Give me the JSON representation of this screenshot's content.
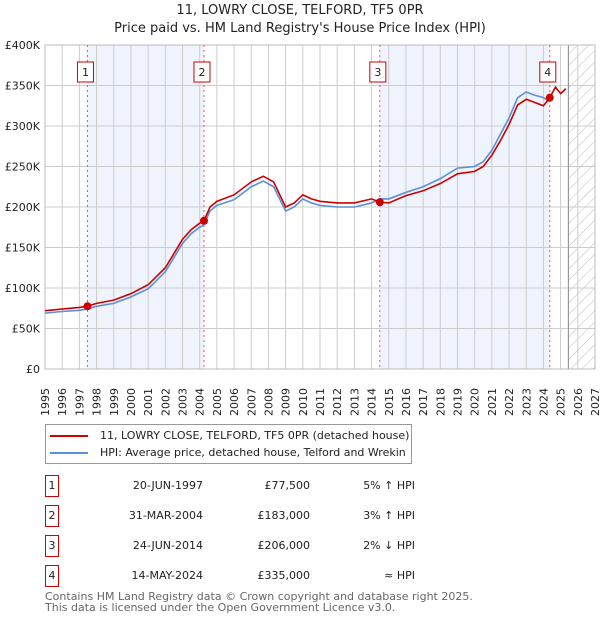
{
  "header": {
    "title": "11, LOWRY CLOSE, TELFORD, TF5 0PR",
    "subtitle": "Price paid vs. HM Land Registry's House Price Index (HPI)"
  },
  "chart_data": {
    "type": "line",
    "title": "11, LOWRY CLOSE, TELFORD, TF5 0PR",
    "subtitle": "Price paid vs. HM Land Registry's House Price Index (HPI)",
    "xlim": [
      1995,
      2027
    ],
    "ylim": [
      0,
      400000
    ],
    "x_ticks": [
      "1995",
      "1996",
      "1997",
      "1998",
      "1999",
      "2000",
      "2001",
      "2002",
      "2003",
      "2004",
      "2005",
      "2006",
      "2007",
      "2008",
      "2009",
      "2010",
      "2011",
      "2012",
      "2013",
      "2014",
      "2015",
      "2016",
      "2017",
      "2018",
      "2019",
      "2020",
      "2021",
      "2022",
      "2023",
      "2024",
      "2025",
      "2026",
      "2027"
    ],
    "y_ticks": [
      {
        "v": 0,
        "label": "£0"
      },
      {
        "v": 50000,
        "label": "£50K"
      },
      {
        "v": 100000,
        "label": "£100K"
      },
      {
        "v": 150000,
        "label": "£150K"
      },
      {
        "v": 200000,
        "label": "£200K"
      },
      {
        "v": 250000,
        "label": "£250K"
      },
      {
        "v": 300000,
        "label": "£300K"
      },
      {
        "v": 350000,
        "label": "£350K"
      },
      {
        "v": 400000,
        "label": "£400K"
      }
    ],
    "grid": true,
    "forecast_start": 2025.45,
    "shaded_periods": [
      [
        1997.47,
        2004.25
      ],
      [
        2014.48,
        2024.37
      ]
    ],
    "series": [
      {
        "name": "11, LOWRY CLOSE, TELFORD, TF5 0PR (detached house)",
        "color": "#cc0000",
        "x": [
          1995,
          1996,
          1997,
          1997.47,
          1998,
          1999,
          2000,
          2001,
          2002,
          2003,
          2003.5,
          2004,
          2004.25,
          2004.6,
          2005,
          2006,
          2007,
          2007.7,
          2008.3,
          2009,
          2009.5,
          2010,
          2010.5,
          2011,
          2012,
          2013,
          2014,
          2014.48,
          2015,
          2016,
          2017,
          2018,
          2019,
          2020,
          2020.5,
          2021,
          2021.5,
          2022,
          2022.5,
          2023,
          2023.5,
          2024,
          2024.37,
          2024.7,
          2025,
          2025.3
        ],
        "y": [
          72000,
          74000,
          76000,
          77500,
          81000,
          85000,
          93000,
          104000,
          125000,
          160000,
          172000,
          180000,
          183000,
          200000,
          207000,
          215000,
          231000,
          238000,
          231000,
          200000,
          205000,
          215000,
          210000,
          207000,
          205000,
          205000,
          210000,
          206000,
          205000,
          214000,
          220000,
          229000,
          241000,
          244000,
          250000,
          264000,
          282000,
          302000,
          326000,
          333000,
          329000,
          325000,
          335000,
          348000,
          340000,
          346000
        ]
      },
      {
        "name": "HPI: Average price, detached house, Telford and Wrekin",
        "color": "#5b8fd6",
        "x": [
          1995,
          1996,
          1997,
          1997.47,
          1998,
          1999,
          2000,
          2001,
          2002,
          2003,
          2003.5,
          2004,
          2004.25,
          2004.6,
          2005,
          2006,
          2007,
          2007.7,
          2008.3,
          2009,
          2009.5,
          2010,
          2010.5,
          2011,
          2012,
          2013,
          2014,
          2014.48,
          2015,
          2016,
          2017,
          2018,
          2019,
          2020,
          2020.5,
          2021,
          2021.5,
          2022,
          2022.5,
          2023,
          2023.5,
          2024,
          2024.37
        ],
        "y": [
          69000,
          71000,
          72500,
          74000,
          77500,
          81000,
          89000,
          99000,
          120000,
          155000,
          167000,
          175000,
          178000,
          195000,
          202000,
          209000,
          225000,
          232000,
          225000,
          195000,
          200000,
          210000,
          205000,
          202000,
          200000,
          200000,
          205000,
          210000,
          210000,
          218000,
          225000,
          235000,
          248000,
          250000,
          256000,
          270000,
          290000,
          310000,
          335000,
          342000,
          338000,
          335000,
          330000
        ]
      }
    ],
    "sales": [
      {
        "id": "1",
        "x": 1997.47,
        "y": 77500
      },
      {
        "id": "2",
        "x": 2004.25,
        "y": 183000
      },
      {
        "id": "3",
        "x": 2014.48,
        "y": 206000
      },
      {
        "id": "4",
        "x": 2024.37,
        "y": 335000
      }
    ]
  },
  "legend": {
    "items": [
      "11, LOWRY CLOSE, TELFORD, TF5 0PR (detached house)",
      "HPI: Average price, detached house, Telford and Wrekin"
    ],
    "colors": [
      "#cc0000",
      "#5b8fd6"
    ]
  },
  "table": {
    "rows": [
      {
        "id": "1",
        "date": "20-JUN-1997",
        "price": "£77,500",
        "hpi": "5% ↑ HPI"
      },
      {
        "id": "2",
        "date": "31-MAR-2004",
        "price": "£183,000",
        "hpi": "3% ↑ HPI"
      },
      {
        "id": "3",
        "date": "24-JUN-2014",
        "price": "£206,000",
        "hpi": "2% ↓ HPI"
      },
      {
        "id": "4",
        "date": "14-MAY-2024",
        "price": "£335,000",
        "hpi": "≈ HPI"
      }
    ]
  },
  "footer": {
    "line1": "Contains HM Land Registry data © Crown copyright and database right 2025.",
    "line2": "This data is licensed under the Open Government Licence v3.0."
  }
}
